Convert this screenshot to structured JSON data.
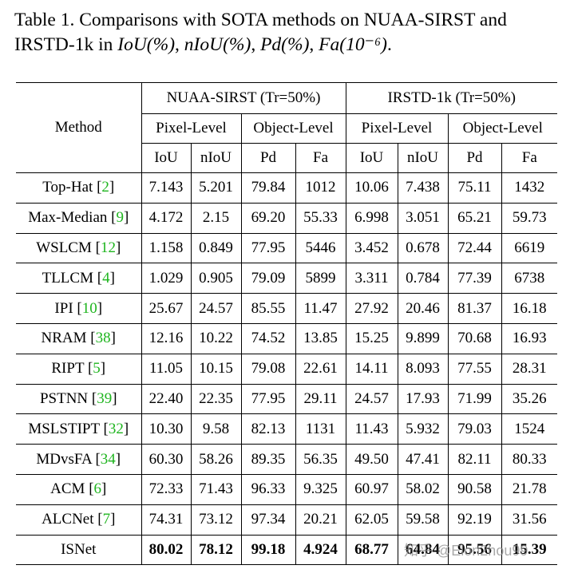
{
  "caption": {
    "line1": "Table 1. Comparisons with SOTA methods on NUAA-SIRST and",
    "line2_prefix": "IRSTD-1k in ",
    "metrics": [
      "IoU(%)",
      "nIoU(%)",
      "Pd(%)",
      "Fa(10⁻⁶)"
    ],
    "sep": ", ",
    "end": "."
  },
  "table": {
    "method_header": "Method",
    "datasets": [
      "NUAA-SIRST (Tr=50%)",
      "IRSTD-1k (Tr=50%)"
    ],
    "levels": [
      "Pixel-Level",
      "Object-Level",
      "Pixel-Level",
      "Object-Level"
    ],
    "metrics": [
      "IoU",
      "nIoU",
      "Pd",
      "Fa",
      "IoU",
      "nIoU",
      "Pd",
      "Fa"
    ],
    "rows": [
      {
        "name": "Top-Hat",
        "ref": "2",
        "values": [
          "7.143",
          "5.201",
          "79.84",
          "1012",
          "10.06",
          "7.438",
          "75.11",
          "1432"
        ]
      },
      {
        "name": "Max-Median",
        "ref": "9",
        "values": [
          "4.172",
          "2.15",
          "69.20",
          "55.33",
          "6.998",
          "3.051",
          "65.21",
          "59.73"
        ]
      },
      {
        "name": "WSLCM",
        "ref": "12",
        "values": [
          "1.158",
          "0.849",
          "77.95",
          "5446",
          "3.452",
          "0.678",
          "72.44",
          "6619"
        ]
      },
      {
        "name": "TLLCM",
        "ref": "4",
        "values": [
          "1.029",
          "0.905",
          "79.09",
          "5899",
          "3.311",
          "0.784",
          "77.39",
          "6738"
        ]
      },
      {
        "name": "IPI",
        "ref": "10",
        "values": [
          "25.67",
          "24.57",
          "85.55",
          "11.47",
          "27.92",
          "20.46",
          "81.37",
          "16.18"
        ]
      },
      {
        "name": "NRAM",
        "ref": "38",
        "values": [
          "12.16",
          "10.22",
          "74.52",
          "13.85",
          "15.25",
          "9.899",
          "70.68",
          "16.93"
        ]
      },
      {
        "name": "RIPT",
        "ref": "5",
        "values": [
          "11.05",
          "10.15",
          "79.08",
          "22.61",
          "14.11",
          "8.093",
          "77.55",
          "28.31"
        ]
      },
      {
        "name": "PSTNN",
        "ref": "39",
        "values": [
          "22.40",
          "22.35",
          "77.95",
          "29.11",
          "24.57",
          "17.93",
          "71.99",
          "35.26"
        ]
      },
      {
        "name": "MSLSTIPT",
        "ref": "32",
        "values": [
          "10.30",
          "9.58",
          "82.13",
          "1131",
          "11.43",
          "5.932",
          "79.03",
          "1524"
        ]
      },
      {
        "name": "MDvsFA",
        "ref": "34",
        "values": [
          "60.30",
          "58.26",
          "89.35",
          "56.35",
          "49.50",
          "47.41",
          "82.11",
          "80.33"
        ]
      },
      {
        "name": "ACM",
        "ref": "6",
        "values": [
          "72.33",
          "71.43",
          "96.33",
          "9.325",
          "60.97",
          "58.02",
          "90.58",
          "21.78"
        ]
      },
      {
        "name": "ALCNet",
        "ref": "7",
        "values": [
          "74.31",
          "73.12",
          "97.34",
          "20.21",
          "62.05",
          "59.58",
          "92.19",
          "31.56"
        ]
      },
      {
        "name": "ISNet",
        "ref": "",
        "values": [
          "80.02",
          "78.12",
          "99.18",
          "4.924",
          "68.77",
          "64.84",
          "95.56",
          "15.39"
        ]
      }
    ]
  },
  "watermark": "知乎 @Elon2hou99",
  "colors": {
    "ref": "#1fb51f",
    "text": "#000000"
  }
}
